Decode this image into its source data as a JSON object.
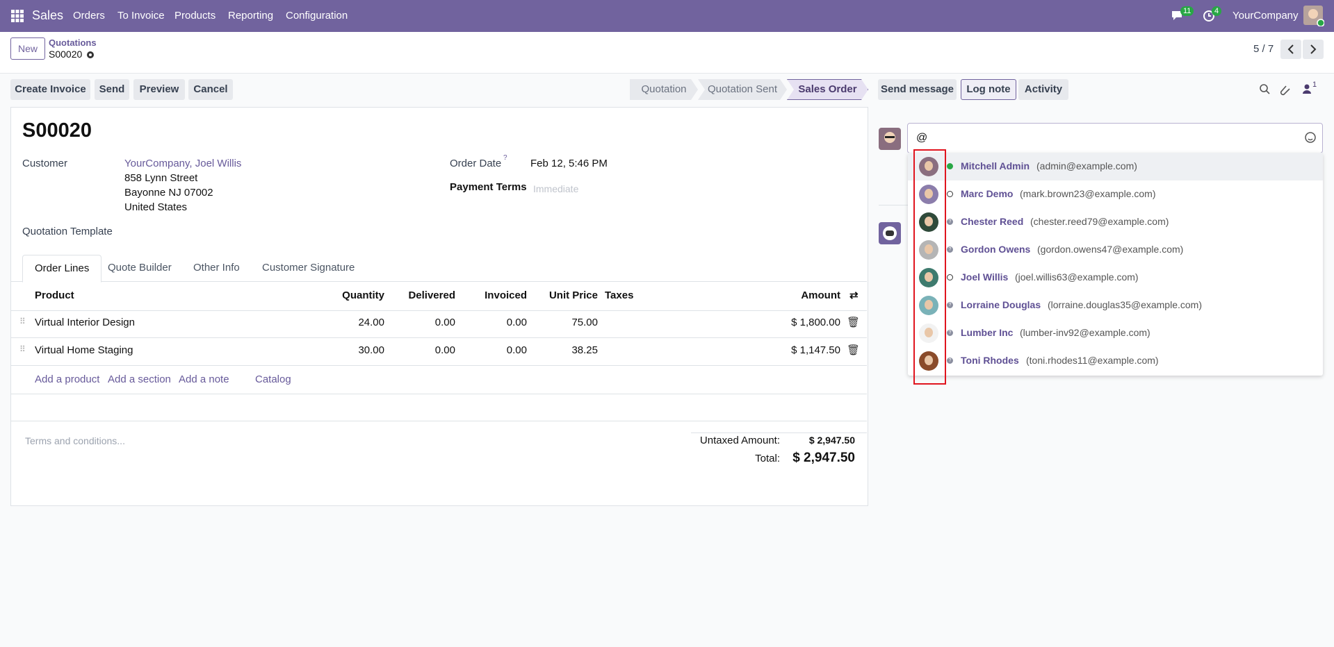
{
  "navbar": {
    "app": "Sales",
    "menu": [
      "Orders",
      "To Invoice",
      "Products",
      "Reporting",
      "Configuration"
    ],
    "messages_badge": "11",
    "activity_badge": "4",
    "company": "YourCompany"
  },
  "breadcrumb": {
    "new": "New",
    "parent": "Quotations",
    "current": "S00020",
    "pager": "5 / 7"
  },
  "actions": [
    "Create Invoice",
    "Send",
    "Preview",
    "Cancel"
  ],
  "statusbar": {
    "steps": [
      "Quotation",
      "Quotation Sent",
      "Sales Order"
    ],
    "active": 2
  },
  "chatter": {
    "buttons": [
      "Send message",
      "Log note",
      "Activity"
    ],
    "follower_count": "1",
    "composer_text": "@"
  },
  "form": {
    "name": "S00020",
    "customer_label": "Customer",
    "customer": "YourCompany, Joel Willis",
    "address": [
      "858 Lynn Street",
      "Bayonne NJ 07002",
      "United States"
    ],
    "order_date_label": "Order Date",
    "order_date_help": "?",
    "order_date": "Feb 12, 5:46 PM",
    "payment_terms_label": "Payment Terms",
    "payment_terms_placeholder": "Immediate",
    "template_label": "Quotation Template",
    "tabs": [
      "Order Lines",
      "Quote Builder",
      "Other Info",
      "Customer Signature"
    ],
    "columns": [
      "Product",
      "Quantity",
      "Delivered",
      "Invoiced",
      "Unit Price",
      "Taxes",
      "Amount"
    ],
    "rows": [
      {
        "product": "Virtual Interior Design",
        "quantity": "24.00",
        "delivered": "0.00",
        "invoiced": "0.00",
        "unit_price": "75.00",
        "amount": "$ 1,800.00"
      },
      {
        "product": "Virtual Home Staging",
        "quantity": "30.00",
        "delivered": "0.00",
        "invoiced": "0.00",
        "unit_price": "38.25",
        "amount": "$ 1,147.50"
      }
    ],
    "add_links": [
      "Add a product",
      "Add a section",
      "Add a note",
      "Catalog"
    ],
    "terms_placeholder": "Terms and conditions...",
    "untaxed_label": "Untaxed Amount:",
    "untaxed": "$ 2,947.50",
    "total_label": "Total:",
    "total": "$ 2,947.50"
  },
  "mentions": [
    {
      "name": "Mitchell Admin",
      "email": "(admin@example.com)",
      "status": "online"
    },
    {
      "name": "Marc Demo",
      "email": "(mark.brown23@example.com)",
      "status": "offline"
    },
    {
      "name": "Chester Reed",
      "email": "(chester.reed79@example.com)",
      "status": "unknown"
    },
    {
      "name": "Gordon Owens",
      "email": "(gordon.owens47@example.com)",
      "status": "unknown"
    },
    {
      "name": "Joel Willis",
      "email": "(joel.willis63@example.com)",
      "status": "offline"
    },
    {
      "name": "Lorraine Douglas",
      "email": "(lorraine.douglas35@example.com)",
      "status": "unknown"
    },
    {
      "name": "Lumber Inc",
      "email": "(lumber-inv92@example.com)",
      "status": "unknown"
    },
    {
      "name": "Toni Rhodes",
      "email": "(toni.rhodes11@example.com)",
      "status": "unknown"
    }
  ]
}
